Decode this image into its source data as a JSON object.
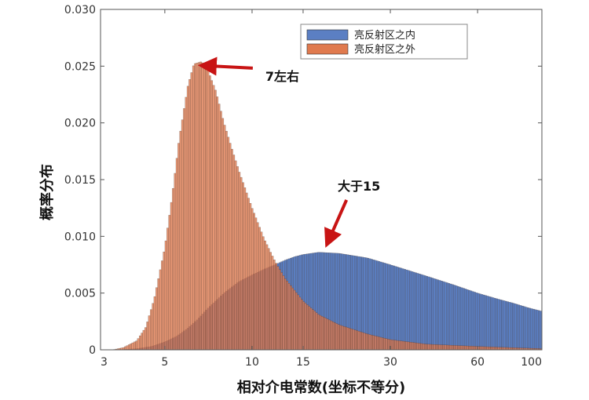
{
  "chart_data": {
    "type": "bar",
    "xlabel": "相对介电常数(坐标不等分)",
    "ylabel": "概率分布",
    "x_scale": "log",
    "xlim": [
      3,
      100
    ],
    "ylim": [
      0,
      0.03
    ],
    "x_ticks": [
      "3",
      "5",
      "10",
      "15",
      "30",
      "60",
      "100"
    ],
    "y_ticks": [
      "0",
      "0.005",
      "0.010",
      "0.015",
      "0.020",
      "0.025",
      "0.030"
    ],
    "grid": false,
    "legend_position": "top-right",
    "colors": {
      "inside": "#5b7fc3",
      "outside": "#e07a4e",
      "arrow": "#c81414"
    },
    "series": [
      {
        "name": "亮反射区之内",
        "x": [
          3.4,
          4,
          4.5,
          5,
          5.5,
          6,
          6.5,
          7,
          8,
          9,
          10,
          11,
          12,
          13,
          14,
          15,
          17,
          20,
          25,
          30,
          40,
          50,
          60,
          70,
          80,
          90,
          100
        ],
        "values": [
          0,
          0.0001,
          0.0003,
          0.0007,
          0.0012,
          0.0019,
          0.0027,
          0.0036,
          0.005,
          0.006,
          0.0066,
          0.0071,
          0.0075,
          0.0079,
          0.0082,
          0.0084,
          0.0086,
          0.0085,
          0.0081,
          0.0075,
          0.0065,
          0.0057,
          0.005,
          0.0045,
          0.0041,
          0.0037,
          0.0034
        ]
      },
      {
        "name": "亮反射区之外",
        "x": [
          3.3,
          3.6,
          4,
          4.3,
          4.6,
          5,
          5.3,
          5.6,
          6,
          6.3,
          6.7,
          7,
          7.5,
          8,
          8.5,
          9,
          10,
          11,
          12,
          13,
          15,
          17,
          20,
          25,
          30,
          40,
          60,
          100
        ],
        "values": [
          0,
          0.0002,
          0.0008,
          0.002,
          0.0045,
          0.009,
          0.0135,
          0.0185,
          0.0232,
          0.0252,
          0.0254,
          0.0248,
          0.0228,
          0.02,
          0.0178,
          0.0158,
          0.0125,
          0.0098,
          0.0078,
          0.0063,
          0.0043,
          0.0031,
          0.0022,
          0.0014,
          0.0009,
          0.0005,
          0.0003,
          0.0001
        ]
      }
    ],
    "annotations": [
      {
        "text": "7左右",
        "target_x": 6.5,
        "target_y": 0.0251
      },
      {
        "text": "大于15",
        "target_x": 18,
        "target_y": 0.0092
      }
    ]
  }
}
